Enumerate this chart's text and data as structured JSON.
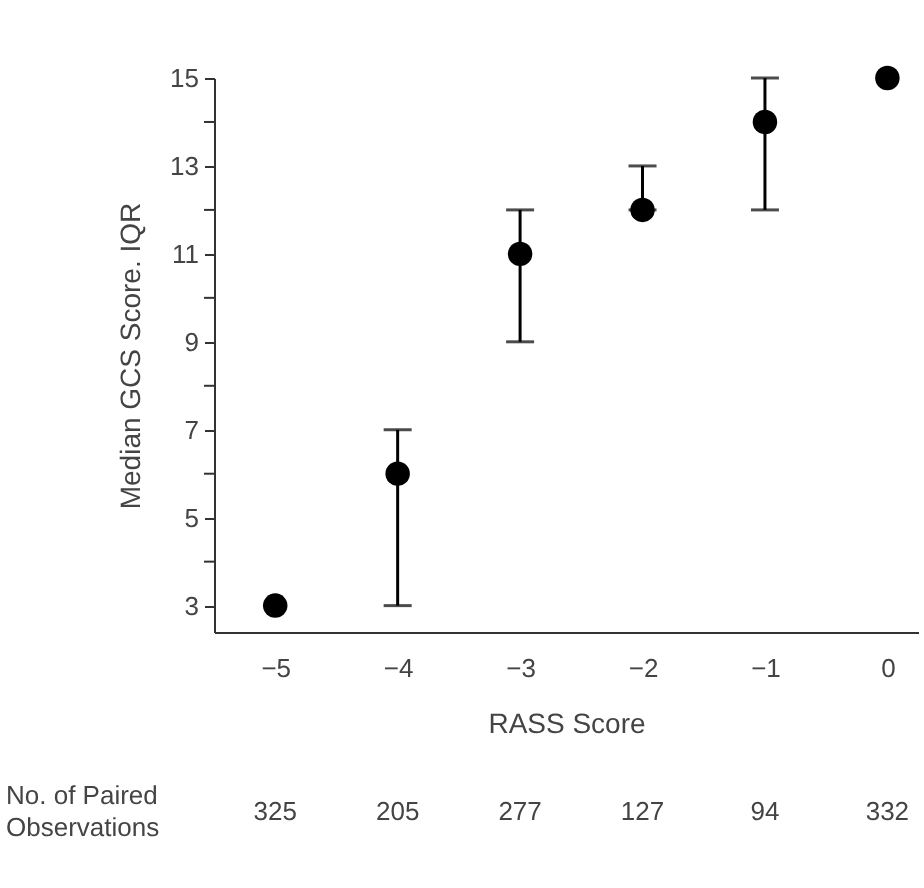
{
  "chart_data": {
    "type": "scatter",
    "xlabel": "RASS Score",
    "ylabel": "Median GCS Score. IQR",
    "x": [
      -5,
      -4,
      -3,
      -2,
      -1,
      0
    ],
    "series": [
      {
        "color": "#000000",
        "values": [
          3,
          6,
          11,
          12,
          14,
          15
        ],
        "errors": [
          null,
          [
            3,
            7
          ],
          [
            9,
            12
          ],
          [
            12,
            13
          ],
          [
            12,
            15
          ],
          null
        ]
      }
    ],
    "marker": "circle",
    "grid": false,
    "legend": false,
    "xlim": [
      -5.5,
      0.25
    ],
    "xticks": [
      {
        "value": -5,
        "label": "−5"
      },
      {
        "value": -4,
        "label": "−4"
      },
      {
        "value": -3,
        "label": "−3"
      },
      {
        "value": -2,
        "label": "−2"
      },
      {
        "value": -1,
        "label": "−1"
      },
      0
    ],
    "ylim": [
      2.4,
      15
    ],
    "yticks": [
      3,
      {
        "value": 4,
        "label": null
      },
      5,
      {
        "value": 6,
        "label": null
      },
      7,
      {
        "value": 8,
        "label": null
      },
      9,
      {
        "value": 10,
        "label": null
      },
      11,
      {
        "value": 12,
        "label": null
      },
      13,
      {
        "value": 14,
        "label": null
      },
      15
    ],
    "annotations": [
      "No. of Paired\nObservations",
      "325",
      "205",
      "277",
      "127",
      "94",
      "332"
    ]
  }
}
